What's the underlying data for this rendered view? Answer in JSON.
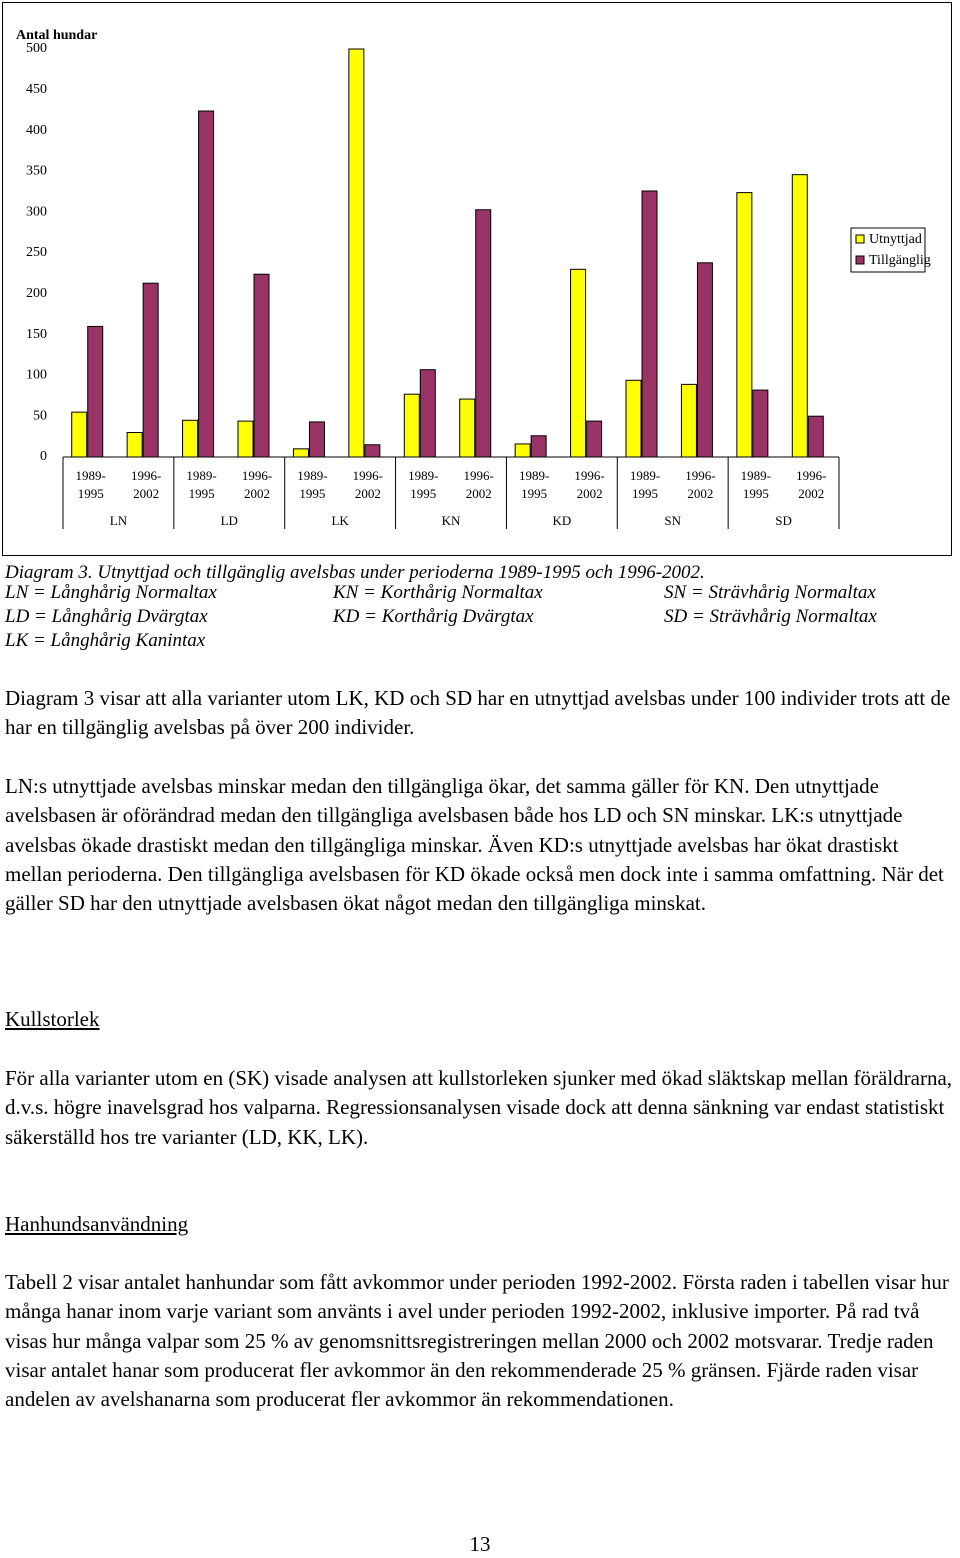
{
  "chart_data": {
    "type": "bar",
    "ylabel": "Antal hundar",
    "categories": [
      "1989-1995",
      "1996-2002",
      "1989-1995",
      "1996-2002",
      "1989-1995",
      "1996-2002",
      "1989-1995",
      "1996-2002",
      "1989-1995",
      "1996-2002",
      "1989-1995",
      "1996-2002",
      "1989-1995",
      "1996-2002"
    ],
    "groups": [
      "LN",
      "LD",
      "LK",
      "KN",
      "KD",
      "SN",
      "SD"
    ],
    "series": [
      {
        "name": "Utnyttjad",
        "color": "#ffff00",
        "values": [
          55,
          30,
          45,
          44,
          10,
          500,
          77,
          71,
          16,
          230,
          94,
          89,
          324,
          346
        ]
      },
      {
        "name": "Tillgänglig",
        "color": "#993366",
        "values": [
          160,
          213,
          424,
          224,
          43,
          15,
          107,
          303,
          26,
          44,
          326,
          238,
          82,
          50
        ]
      }
    ],
    "ylim": [
      0,
      500
    ],
    "yticks": [
      0,
      50,
      100,
      150,
      200,
      250,
      300,
      350,
      400,
      450,
      500
    ],
    "grid": false,
    "legend": "right"
  },
  "caption": "Diagram 3. Utnyttjad och tillgänglig avelsbas under perioderna 1989-1995 och 1996-2002.",
  "abbreviations": [
    "LN = Långhårig Normaltax",
    "KN = Korthårig Normaltax",
    "SN = Strävhårig Normaltax",
    "LD = Långhårig Dvärgtax",
    "KD = Korthårig Dvärgtax",
    "SD = Strävhårig Normaltax",
    "LK = Långhårig Kanintax"
  ],
  "paragraphs": [
    "Diagram 3 visar att alla varianter utom LK, KD och SD har en utnyttjad avelsbas under 100 individer trots att de har en tillgänglig avelsbas på över 200 individer.",
    "LN:s utnyttjade avelsbas minskar medan den tillgängliga ökar, det samma gäller för KN. Den utnyttjade avelsbasen är oförändrad medan den tillgängliga avelsbasen både hos LD och SN minskar. LK:s utnyttjade avelsbas ökade drastiskt medan den tillgängliga minskar. Även KD:s utnyttjade avelsbas har ökat drastiskt mellan perioderna. Den tillgängliga avelsbasen för KD ökade också men dock inte i samma omfattning. När det gäller SD har den utnyttjade avelsbasen ökat något medan den tillgängliga minskat.",
    "För alla varianter utom en (SK) visade analysen att kullstorleken sjunker med ökad släktskap mellan föräldrarna, d.v.s. högre inavelsgrad hos valparna. Regressionsanalysen visade dock att denna sänkning var endast statistiskt säkerställd hos tre varianter (LD, KK, LK).",
    "Tabell 2 visar antalet hanhundar som fått avkommor under perioden 1992-2002. Första raden i tabellen visar hur många hanar inom varje variant som använts i avel under perioden 1992-2002, inklusive importer. På rad två visas hur många valpar som 25 % av genomsnittsregistreringen mellan 2000 och 2002 motsvarar. Tredje raden visar antalet hanar som producerat fler avkommor än den rekommenderade 25 % gränsen. Fjärde raden visar andelen av avelshanarna som producerat fler avkommor än rekommendationen."
  ],
  "headings": [
    "Kullstorlek",
    "Hanhundsanvändning"
  ],
  "page_number": "13"
}
